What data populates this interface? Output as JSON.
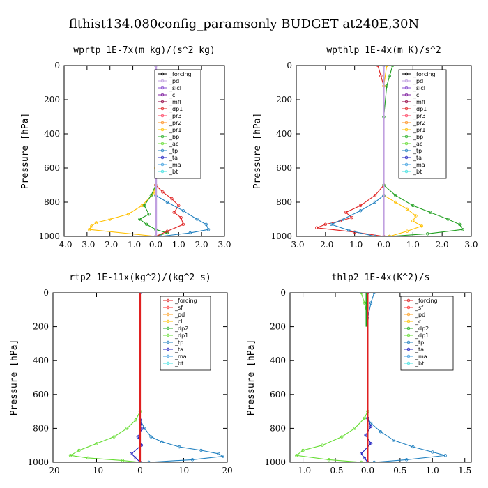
{
  "figure_title": "flthist134.080config_paramsonly  BUDGET at240E,30N",
  "chart_data": [
    {
      "type": "line",
      "title": "wprtp  1E-7x(m kg)/(s^2 kg)",
      "ylabel": "Pressure [hPa]",
      "xlim": [
        -4.0,
        3.0
      ],
      "ylim": [
        1000,
        0
      ],
      "xticks": [
        "-4.0",
        "-3.0",
        "-2.0",
        "-1.0",
        "0.0",
        "1.0",
        "2.0",
        "3.0"
      ],
      "yticks": [
        "0",
        "200",
        "400",
        "600",
        "800",
        "1000"
      ],
      "legend_position": "top-right",
      "legend": [
        "_forcing",
        "_pd",
        "_sicl",
        "_cl",
        "_mfl",
        "_dp1",
        "_pr3",
        "_pr2",
        "_pr1",
        "_bp",
        "_ac",
        "_tp",
        "_ta",
        "_ma",
        "_bt"
      ],
      "series": [
        {
          "color": "#ffc000",
          "x": [
            0.0,
            0.0,
            0.0,
            -0.1,
            -0.6,
            -1.2,
            -2.0,
            -2.6,
            -2.8,
            -2.9,
            0.0
          ],
          "y": [
            0,
            600,
            700,
            750,
            820,
            870,
            900,
            920,
            940,
            960,
            1000
          ]
        },
        {
          "color": "#1f9f1f",
          "x": [
            0.0,
            0.0,
            -0.2,
            -0.5,
            -0.3,
            -0.7,
            -0.4,
            0.0,
            0.5,
            0.0
          ],
          "y": [
            0,
            700,
            760,
            820,
            870,
            900,
            930,
            960,
            980,
            1000
          ]
        },
        {
          "color": "#e02020",
          "x": [
            0.0,
            0.0,
            0.3,
            0.7,
            1.0,
            0.8,
            1.1,
            1.2,
            0.5,
            0.0
          ],
          "y": [
            0,
            700,
            740,
            780,
            820,
            860,
            890,
            930,
            970,
            1000
          ]
        },
        {
          "color": "#2080c0",
          "x": [
            0.0,
            0.0,
            0.5,
            1.2,
            1.8,
            2.2,
            2.3,
            1.5,
            0.2
          ],
          "y": [
            0,
            760,
            800,
            850,
            900,
            930,
            960,
            980,
            1000
          ]
        },
        {
          "color": "#000000",
          "x": [
            0.0,
            0.0
          ],
          "y": [
            0,
            1000
          ]
        },
        {
          "color": "#c0a0e0",
          "x": [
            0.02,
            0.02
          ],
          "y": [
            0,
            1000
          ]
        }
      ]
    },
    {
      "type": "line",
      "title": "wpthlp  1E-4x(m K)/s^2",
      "ylabel": "Pressure [hPa]",
      "xlim": [
        -3.0,
        3.0
      ],
      "ylim": [
        1000,
        0
      ],
      "xticks": [
        "-3.0",
        "-2.0",
        "-1.0",
        "0.0",
        "1.0",
        "2.0",
        "3.0"
      ],
      "yticks": [
        "0",
        "200",
        "400",
        "600",
        "800",
        "1000"
      ],
      "legend_position": "top-right",
      "legend": [
        "_forcing",
        "_pd",
        "_sicl",
        "_cl",
        "_mfl",
        "_dp1",
        "_pr3",
        "_pr2",
        "_pr1",
        "_bp",
        "_ac",
        "_tp",
        "_ta",
        "_ma",
        "_bt"
      ],
      "series": [
        {
          "color": "#e02020",
          "x": [
            -0.2,
            -0.1,
            0.0,
            0.0,
            -0.3,
            -0.8,
            -1.3,
            -1.1,
            -1.5,
            -2.0,
            -2.3,
            -1.0,
            0.0
          ],
          "y": [
            0,
            60,
            120,
            700,
            760,
            820,
            860,
            890,
            910,
            930,
            950,
            975,
            1000
          ]
        },
        {
          "color": "#1f9f1f",
          "x": [
            0.3,
            0.2,
            0.1,
            0.0,
            0.0,
            0.4,
            1.0,
            1.6,
            2.2,
            2.6,
            2.7,
            1.5,
            0.2
          ],
          "y": [
            0,
            60,
            120,
            300,
            700,
            760,
            820,
            860,
            900,
            930,
            960,
            985,
            1000
          ]
        },
        {
          "color": "#ffc000",
          "x": [
            0.1,
            0.0,
            0.0,
            0.4,
            0.8,
            1.1,
            1.0,
            1.3,
            0.8,
            0.2
          ],
          "y": [
            0,
            120,
            760,
            800,
            840,
            880,
            910,
            940,
            970,
            1000
          ]
        },
        {
          "color": "#2080c0",
          "x": [
            0.0,
            0.0,
            -0.3,
            -0.8,
            -1.4,
            -1.8,
            -1.2,
            -0.3
          ],
          "y": [
            0,
            760,
            800,
            850,
            900,
            930,
            965,
            1000
          ]
        },
        {
          "color": "#c0a0e0",
          "x": [
            0.0,
            0.0
          ],
          "y": [
            0,
            1000
          ]
        }
      ]
    },
    {
      "type": "line",
      "title": "rtp2  1E-11x(kg^2)/(kg^2 s)",
      "ylabel": "Pressure [hPa]",
      "xlim": [
        -20,
        20
      ],
      "ylim": [
        1000,
        0
      ],
      "xticks": [
        "-20",
        "-10",
        "0",
        "10",
        "20"
      ],
      "yticks": [
        "0",
        "200",
        "400",
        "600",
        "800",
        "1000"
      ],
      "legend_position": "top-right",
      "legend": [
        "_forcing",
        "_sf",
        "_pd",
        "_cl",
        "_dp2",
        "_dp1",
        "_tp",
        "_ta",
        "_ma",
        "_bt"
      ],
      "series": [
        {
          "color": "#66dd33",
          "x": [
            0.0,
            -1.0,
            -3.0,
            -6.0,
            -10.0,
            -14.0,
            -16.0,
            -12.0,
            -4.0,
            0.0
          ],
          "y": [
            700,
            750,
            800,
            850,
            890,
            930,
            960,
            975,
            990,
            1000
          ]
        },
        {
          "color": "#2080c0",
          "x": [
            0.0,
            1.0,
            2.5,
            5.0,
            9.0,
            14.0,
            18.0,
            19.0,
            12.0,
            2.0
          ],
          "y": [
            750,
            800,
            850,
            880,
            910,
            930,
            950,
            965,
            985,
            1000
          ]
        },
        {
          "color": "#2020c0",
          "x": [
            0.0,
            0.0,
            0.5,
            -0.5,
            0.3,
            -2.0,
            -1.0,
            0.0
          ],
          "y": [
            0,
            750,
            800,
            850,
            900,
            950,
            975,
            1000
          ]
        },
        {
          "color": "#e02020",
          "x": [
            0.0,
            0.0
          ],
          "y": [
            0,
            1000
          ]
        }
      ]
    },
    {
      "type": "line",
      "title": "thlp2  1E-4x(K^2)/s",
      "ylabel": "Pressure [hPa]",
      "xlim": [
        -1.2,
        1.6
      ],
      "ylim": [
        1000,
        0
      ],
      "xticks": [
        "-1.0",
        "-0.5",
        "0.0",
        "0.5",
        "1.0",
        "1.5"
      ],
      "yticks": [
        "0",
        "200",
        "400",
        "600",
        "800",
        "1000"
      ],
      "legend_position": "top-right",
      "legend": [
        "_forcing",
        "_sf",
        "_pd",
        "_cl",
        "_dp2",
        "_dp1",
        "_tp",
        "_ta",
        "_ma",
        "_bt"
      ],
      "series": [
        {
          "color": "#66dd33",
          "x": [
            -0.1,
            -0.05,
            0.0,
            0.0,
            -0.05,
            -0.2,
            -0.4,
            -0.7,
            -1.0,
            -1.1,
            -0.6,
            -0.1
          ],
          "y": [
            0,
            60,
            150,
            700,
            740,
            800,
            850,
            900,
            930,
            960,
            985,
            1000
          ]
        },
        {
          "color": "#2080c0",
          "x": [
            0.1,
            0.05,
            0.0,
            0.0,
            0.05,
            0.2,
            0.4,
            0.7,
            1.0,
            1.2,
            0.6,
            0.1
          ],
          "y": [
            0,
            60,
            150,
            740,
            770,
            820,
            870,
            910,
            940,
            960,
            985,
            1000
          ]
        },
        {
          "color": "#2020c0",
          "x": [
            0.0,
            0.0,
            0.05,
            -0.03,
            0.05,
            -0.1,
            -0.05,
            0.0
          ],
          "y": [
            0,
            740,
            790,
            840,
            890,
            950,
            975,
            1000
          ]
        },
        {
          "color": "#1f9f1f",
          "x": [
            -0.02,
            -0.02
          ],
          "y": [
            0,
            200
          ]
        },
        {
          "color": "#e02020",
          "x": [
            0.0,
            0.0
          ],
          "y": [
            0,
            1000
          ]
        }
      ]
    }
  ]
}
